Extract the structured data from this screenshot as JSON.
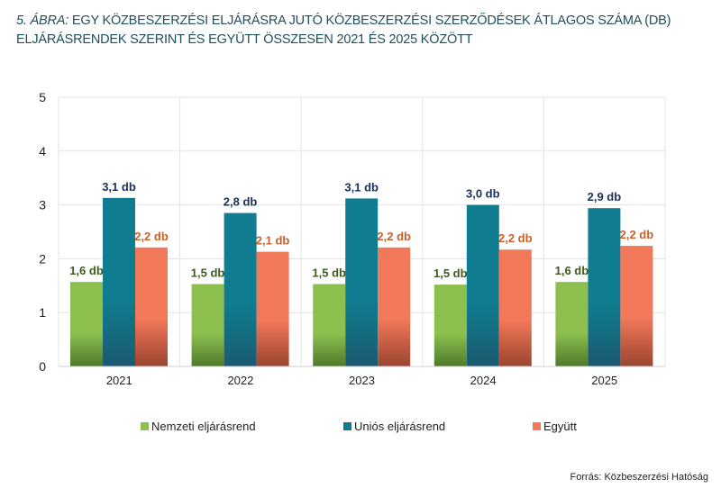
{
  "chart_data": {
    "type": "bar",
    "title_prefix": "5. ÁBRA:",
    "title": "EGY KÖZBESZERZÉSI ELJÁRÁSRA JUTÓ KÖZBESZERZÉSI SZERZŐDÉSEK ÁTLAGOS SZÁMA (DB) ELJÁRÁSRENDEK SZERINT ÉS EGYÜTT ÖSSZESEN 2021 ÉS 2025 KÖZÖTT",
    "categories": [
      "2021",
      "2022",
      "2023",
      "2024",
      "2025"
    ],
    "series": [
      {
        "name": "Nemzeti eljárásrend",
        "values": [
          1.57,
          1.53,
          1.53,
          1.52,
          1.57
        ],
        "labels": [
          "1,6 db",
          "1,5 db",
          "1,5 db",
          "1,5 db",
          "1,6 db"
        ],
        "color": "#8dbf4f",
        "label_color": "#3d5a1e"
      },
      {
        "name": "Uniós eljárásrend",
        "values": [
          3.13,
          2.85,
          3.12,
          3.0,
          2.94
        ],
        "labels": [
          "3,1 db",
          "2,8 db",
          "3,1 db",
          "3,0 db",
          "2,9 db"
        ],
        "color": "#0f7d8f",
        "label_color": "#1c2f5a"
      },
      {
        "name": "Együtt",
        "values": [
          2.21,
          2.13,
          2.21,
          2.17,
          2.24
        ],
        "labels": [
          "2,2 db",
          "2,1 db",
          "2,2 db",
          "2,2 db",
          "2,2 db"
        ],
        "color": "#f2785a",
        "label_color": "#c8602a"
      }
    ],
    "ylim": [
      0,
      5
    ],
    "yticks": [
      "0",
      "1",
      "2",
      "3",
      "4",
      "5"
    ],
    "grid": true,
    "legend": "bottom"
  },
  "source": "Forrás: Közbeszerzési Hatóság"
}
